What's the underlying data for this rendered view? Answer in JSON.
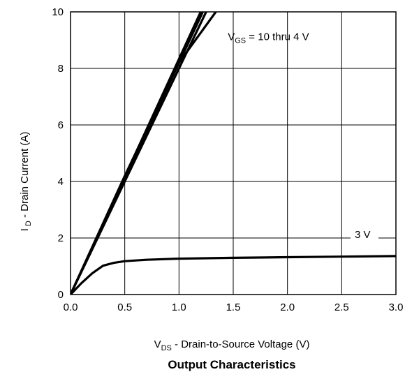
{
  "chart_data": {
    "type": "line",
    "title": "Output Characteristics",
    "xlabel": {
      "main": "V",
      "sub": "DS",
      "rest": " - Drain-to-Source Voltage (V)"
    },
    "ylabel": {
      "main": "I",
      "sub": " D",
      "rest": " - Drain Current (A)"
    },
    "xlim": [
      0.0,
      3.0
    ],
    "ylim": [
      0,
      10
    ],
    "xticks": [
      "0.0",
      "0.5",
      "1.0",
      "1.5",
      "2.0",
      "2.5",
      "3.0"
    ],
    "yticks": [
      "0",
      "2",
      "4",
      "6",
      "8",
      "10"
    ],
    "grid": true,
    "annotations": [
      {
        "main": "V",
        "sub": "GS",
        "rest": " = 10 thru 4 V",
        "x": 1.45,
        "y": 9.0
      },
      {
        "main": "3 V",
        "sub": "",
        "rest": "",
        "x": 2.62,
        "y": 2.0
      }
    ],
    "series": [
      {
        "x": [
          0,
          1.2
        ],
        "y": [
          0,
          10.0
        ]
      },
      {
        "x": [
          0,
          1.22
        ],
        "y": [
          0,
          10.0
        ]
      },
      {
        "x": [
          0,
          1.25
        ],
        "y": [
          0,
          10.0
        ]
      },
      {
        "x": [
          0,
          0.5,
          1.0,
          1.34
        ],
        "y": [
          0,
          4.2,
          8.2,
          10.0
        ]
      },
      {
        "x": [
          0,
          0.1,
          0.2,
          0.3,
          0.4,
          0.5,
          0.7,
          1.0,
          1.5,
          2.0,
          2.5,
          3.0
        ],
        "y": [
          0,
          0.4,
          0.75,
          1.02,
          1.12,
          1.18,
          1.23,
          1.27,
          1.3,
          1.32,
          1.34,
          1.36
        ]
      }
    ]
  }
}
